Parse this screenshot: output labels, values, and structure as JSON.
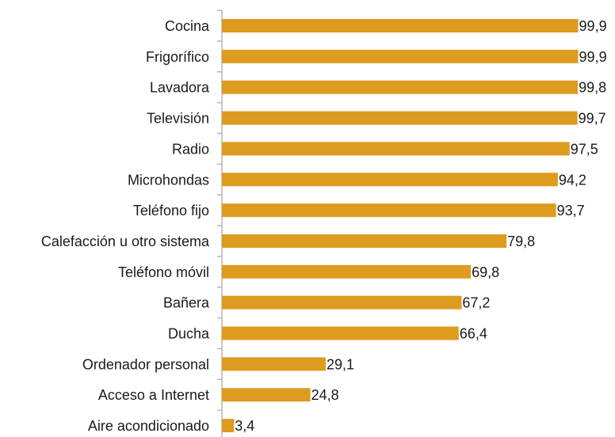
{
  "chart_data": {
    "type": "bar",
    "orientation": "horizontal",
    "title": "",
    "xlabel": "",
    "ylabel": "",
    "categories": [
      "Cocina",
      "Frigorífico",
      "Lavadora",
      "Televisión",
      "Radio",
      "Microhondas",
      "Teléfono fijo",
      "Calefacción u otro sistema",
      "Teléfono móvil",
      "Bañera",
      "Ducha",
      "Ordenador personal",
      "Acceso a Internet",
      "Aire acondicionado"
    ],
    "values": [
      99.9,
      99.9,
      99.8,
      99.7,
      97.5,
      94.2,
      93.7,
      79.8,
      69.8,
      67.2,
      66.4,
      29.1,
      24.8,
      3.4
    ],
    "value_labels": [
      "99,9",
      "99,9",
      "99,8",
      "99,7",
      "97,5",
      "94,2",
      "93,7",
      "79,8",
      "69,8",
      "67,2",
      "66,4",
      "29,1",
      "24,8",
      "3,4"
    ],
    "xlim": [
      0,
      100
    ],
    "grid": false,
    "legend": "none",
    "bar_color": "#dd9b1f"
  }
}
